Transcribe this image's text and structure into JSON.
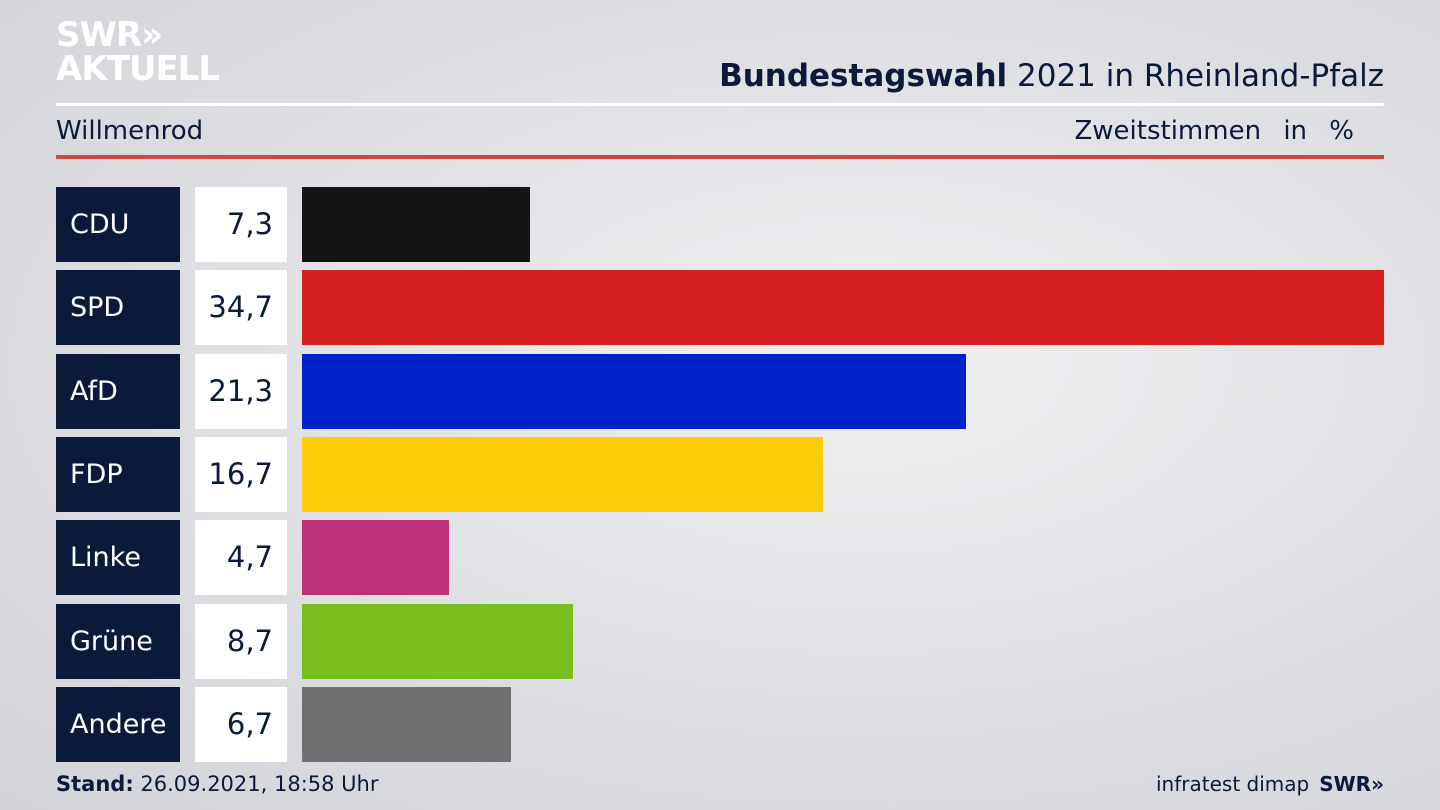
{
  "logo": {
    "line1": "SWR»",
    "line2": "AKTUELL"
  },
  "header": {
    "title_bold": "Bundestagswahl",
    "title_rest": " 2021 in Rheinland-Pfalz",
    "location": "Willmenrod",
    "measure": "Zweitstimmen",
    "unit": "in %"
  },
  "footer": {
    "stand_label": "Stand:",
    "stand_value": " 26.09.2021, 18:58 Uhr",
    "source": "infratest dimap",
    "brand": "SWR»"
  },
  "chart_data": {
    "type": "bar",
    "orientation": "horizontal",
    "title": "Bundestagswahl 2021 in Rheinland-Pfalz – Willmenrod",
    "xlabel": "Zweitstimmen in %",
    "ylabel": "",
    "categories": [
      "CDU",
      "SPD",
      "AfD",
      "FDP",
      "Linke",
      "Grüne",
      "Andere"
    ],
    "values": [
      7.3,
      34.7,
      21.3,
      16.7,
      4.7,
      8.7,
      6.7
    ],
    "labels": [
      "7,3",
      "34,7",
      "21,3",
      "16,7",
      "4,7",
      "8,7",
      "6,7"
    ],
    "colors": [
      "#141414",
      "#d52020",
      "#0022c8",
      "#fdcc08",
      "#be3075",
      "#78be1e",
      "#717174"
    ],
    "xlim": [
      0,
      34.7
    ],
    "grid": false
  }
}
